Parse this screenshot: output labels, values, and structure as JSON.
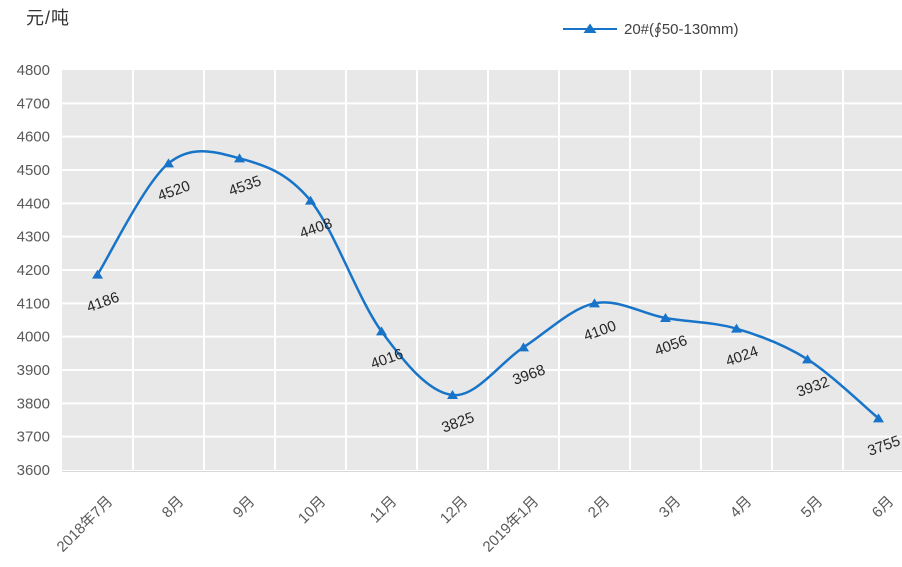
{
  "y_axis_title": "元/吨",
  "legend": {
    "series_label": "20#(∮50-130mm)"
  },
  "chart_data": {
    "type": "line",
    "smooth": true,
    "title": "",
    "ylabel": "元/吨",
    "xlabel": "",
    "categories": [
      "2018年7月",
      "8月",
      "9月",
      "10月",
      "11月",
      "12月",
      "2019年1月",
      "2月",
      "3月",
      "4月",
      "5月",
      "6月"
    ],
    "series": [
      {
        "name": "20#(∮50-130mm)",
        "values": [
          4186,
          4520,
          4535,
          4408,
          4016,
          3825,
          3968,
          4100,
          4056,
          4024,
          3932,
          3755
        ]
      }
    ],
    "ylim": [
      3600,
      4800
    ],
    "ytick_step": 100,
    "grid": true,
    "legend_position": "top-center",
    "marker": "triangle-up",
    "data_label_rotation_deg": -20,
    "x_tick_rotation_deg": -45,
    "colors": {
      "line": "#1874c8",
      "plot_background": "#e8e8e8",
      "gridline": "#ffffff",
      "tick_label": "#595959",
      "data_label": "#262626",
      "axis_line": "#d9d9d9"
    }
  }
}
